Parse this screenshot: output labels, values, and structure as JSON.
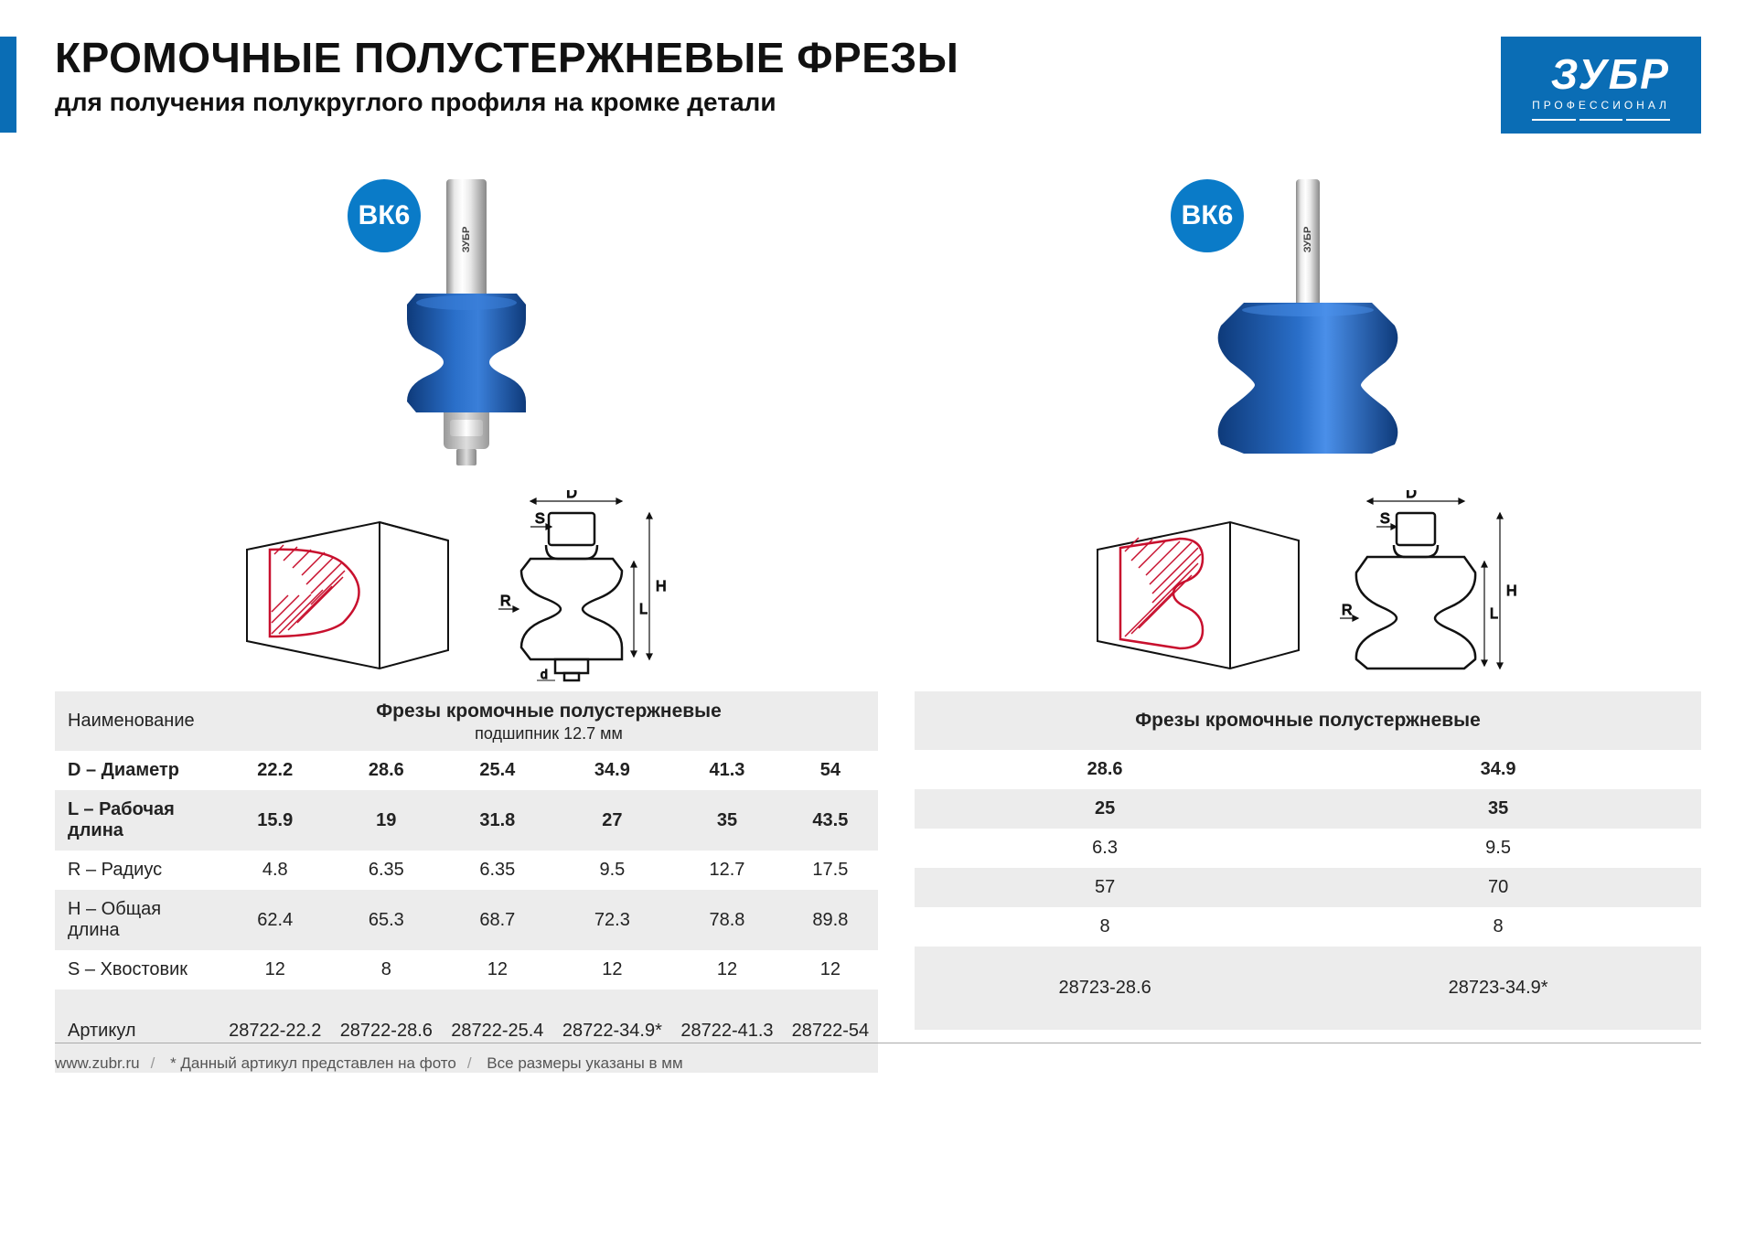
{
  "header": {
    "title": "КРОМОЧНЫЕ ПОЛУСТЕРЖНЕВЫЕ ФРЕЗЫ",
    "subtitle": "для получения полукруглого профиля на кромке детали",
    "accent_color": "#0a6db5"
  },
  "logo": {
    "brand": "ЗУБР",
    "tagline": "ПРОФЕССИОНАЛ",
    "bg": "#0a6db5"
  },
  "badge": {
    "text": "ВК6",
    "bg": "#0a7bc8"
  },
  "product_colors": {
    "body_blue": "#1b5db3",
    "body_blue_dark": "#0e3a7a",
    "steel_light": "#e8e8e8",
    "steel_dark": "#888888"
  },
  "diagram": {
    "labels": {
      "D": "D",
      "S": "S",
      "R": "R",
      "H": "H",
      "L": "L",
      "d": "d"
    },
    "profile_stroke": "#c8102e",
    "hatch_stroke": "#c8102e",
    "tech_stroke": "#111"
  },
  "table1": {
    "header_title": "Фрезы кромочные полустержневые",
    "header_sub": "подшипник 12.7 мм",
    "row_label_col": "Наименование",
    "rows": [
      {
        "label": "D – Диаметр",
        "vals": [
          "22.2",
          "28.6",
          "25.4",
          "34.9",
          "41.3",
          "54"
        ],
        "bold": true,
        "gray": false
      },
      {
        "label": "L – Рабочая длина",
        "vals": [
          "15.9",
          "19",
          "31.8",
          "27",
          "35",
          "43.5"
        ],
        "bold": true,
        "gray": true
      },
      {
        "label": "R – Радиус",
        "vals": [
          "4.8",
          "6.35",
          "6.35",
          "9.5",
          "12.7",
          "17.5"
        ],
        "bold": false,
        "gray": false
      },
      {
        "label": "H – Общая длина",
        "vals": [
          "62.4",
          "65.3",
          "68.7",
          "72.3",
          "78.8",
          "89.8"
        ],
        "bold": false,
        "gray": true
      },
      {
        "label": "S – Хвостовик",
        "vals": [
          "12",
          "8",
          "12",
          "12",
          "12",
          "12"
        ],
        "bold": false,
        "gray": false
      }
    ],
    "article_label": "Артикул",
    "articles": [
      "28722-22.2",
      "28722-28.6",
      "28722-25.4",
      "28722-34.9*",
      "28722-41.3",
      "28722-54"
    ]
  },
  "table2": {
    "header_title": "Фрезы кромочные полустержневые",
    "rows": [
      {
        "label": "",
        "vals": [
          "28.6",
          "34.9"
        ],
        "bold": true,
        "gray": false
      },
      {
        "label": "",
        "vals": [
          "25",
          "35"
        ],
        "bold": true,
        "gray": true
      },
      {
        "label": "",
        "vals": [
          "6.3",
          "9.5"
        ],
        "bold": false,
        "gray": false
      },
      {
        "label": "",
        "vals": [
          "57",
          "70"
        ],
        "bold": false,
        "gray": true
      },
      {
        "label": "",
        "vals": [
          "8",
          "8"
        ],
        "bold": false,
        "gray": false
      }
    ],
    "articles": [
      "28723-28.6",
      "28723-34.9*"
    ]
  },
  "footer": {
    "site": "www.zubr.ru",
    "note1": "* Данный артикул представлен на фото",
    "note2": "Все размеры указаны в мм"
  }
}
